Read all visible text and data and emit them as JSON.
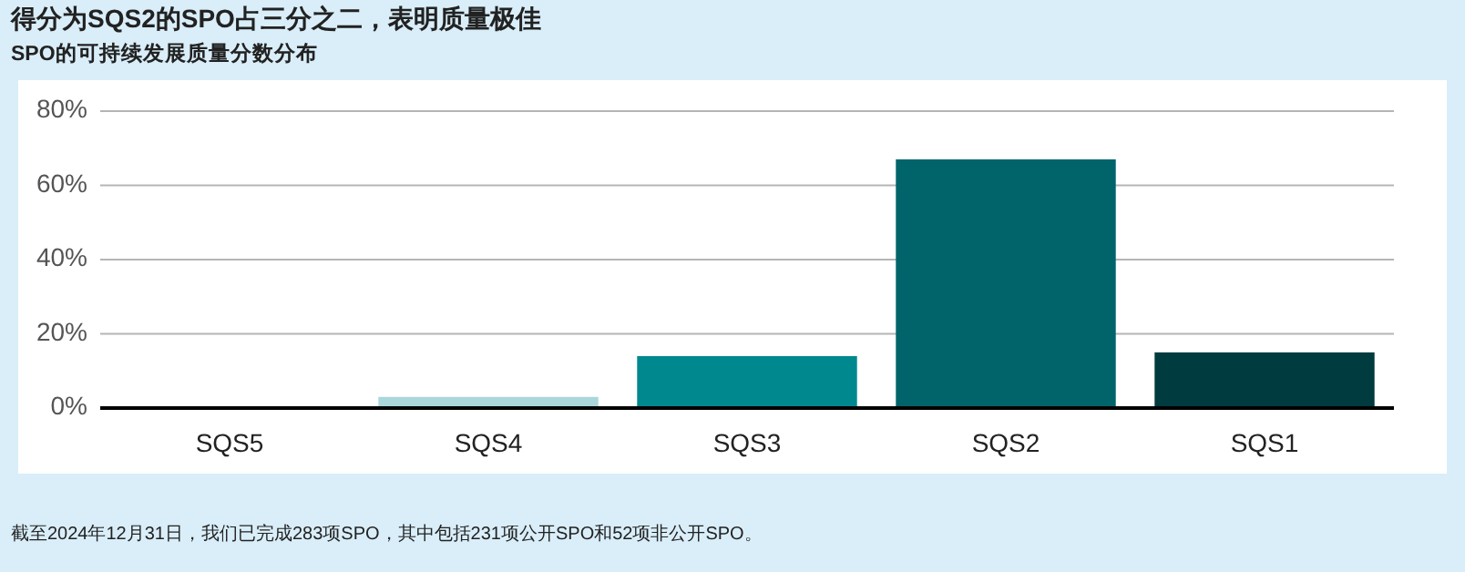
{
  "chart_data": {
    "type": "bar",
    "title": "得分为SQS2的SPO占三分之二，表明质量极佳",
    "subtitle": "SPO的可持续发展质量分数分布",
    "categories": [
      "SQS5",
      "SQS4",
      "SQS3",
      "SQS2",
      "SQS1"
    ],
    "values": [
      0,
      3,
      14,
      67,
      15
    ],
    "colors": [
      "#aad6dc",
      "#aad6dc",
      "#00888f",
      "#00646a",
      "#003b40"
    ],
    "ylim": [
      0,
      80
    ],
    "yticks": [
      {
        "value": 0,
        "label": "0%"
      },
      {
        "value": 20,
        "label": "20%"
      },
      {
        "value": 40,
        "label": "40%"
      },
      {
        "value": 60,
        "label": "60%"
      },
      {
        "value": 80,
        "label": "80%"
      }
    ],
    "grid": "y",
    "annotations": [
      "截至2024年12月31日，我们已完成283项SPO，其中包括231项公开SPO和52项非公开SPO。"
    ]
  }
}
